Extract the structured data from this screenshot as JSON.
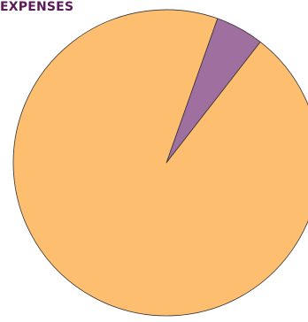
{
  "chart_data": {
    "type": "pie",
    "title": "EXPENSES",
    "slices": [
      {
        "label": "",
        "value": 94.9,
        "color": "#fdbf6f"
      },
      {
        "label": "",
        "value": 5.1,
        "color": "#9e6f9f"
      }
    ],
    "start_slice": 1,
    "start_angle_deg": 19.5,
    "clockwise": true,
    "stroke_color": "#333333"
  }
}
